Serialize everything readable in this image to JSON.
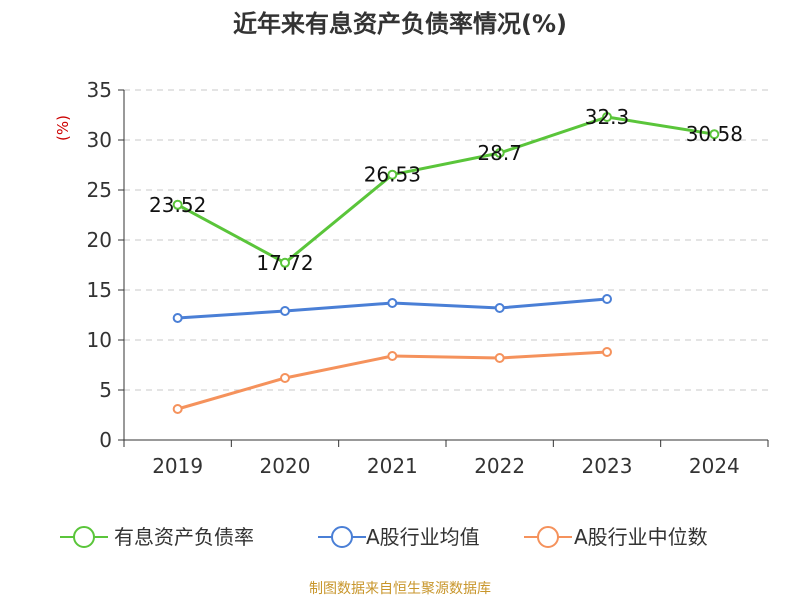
{
  "title": "近年来有息资产负债率情况(%)",
  "source": "制图数据来自恒生聚源数据库",
  "chart_data": {
    "type": "line",
    "title": "近年来有息资产负债率情况(%)",
    "xlabel": "",
    "ylabel": "(%)",
    "categories": [
      "2019",
      "2020",
      "2021",
      "2022",
      "2023",
      "2024"
    ],
    "ylim": [
      0,
      35
    ],
    "yticks": [
      0,
      5,
      10,
      15,
      20,
      25,
      30,
      35
    ],
    "grid": true,
    "legend_position": "bottom",
    "series": [
      {
        "name": "有息资产负债率",
        "color": "#5ac53a",
        "show_labels": true,
        "values": [
          23.52,
          17.72,
          26.53,
          28.7,
          32.3,
          30.58
        ],
        "labels": [
          "23.52",
          "17.72",
          "26.53",
          "28.7",
          "32.3",
          "30.58"
        ]
      },
      {
        "name": "A股行业均值",
        "color": "#4a7fd6",
        "show_labels": false,
        "values": [
          12.2,
          12.9,
          13.7,
          13.2,
          14.1,
          null
        ]
      },
      {
        "name": "A股行业中位数",
        "color": "#f5925c",
        "show_labels": false,
        "values": [
          3.1,
          6.2,
          8.4,
          8.2,
          8.8,
          null
        ]
      }
    ]
  }
}
